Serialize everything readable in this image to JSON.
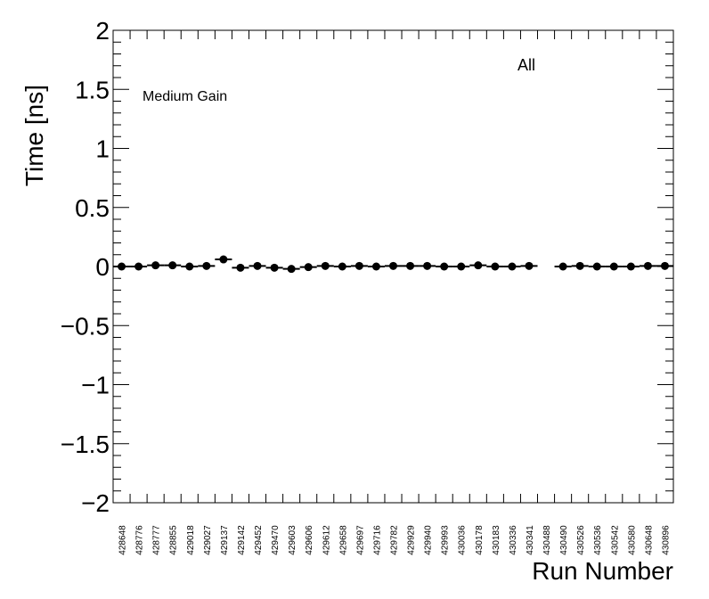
{
  "chart_data": {
    "type": "scatter",
    "ylabel": "Time [ns]",
    "xlabel": "Run Number",
    "annotations": [
      "Medium Gain",
      "All"
    ],
    "categories": [
      "428648",
      "428776",
      "428777",
      "428855",
      "429018",
      "429027",
      "429137",
      "429142",
      "429452",
      "429470",
      "429603",
      "429606",
      "429612",
      "429658",
      "429697",
      "429716",
      "429782",
      "429929",
      "429940",
      "429993",
      "430036",
      "430178",
      "430183",
      "430336",
      "430341",
      "430488",
      "430490",
      "430526",
      "430536",
      "430542",
      "430580",
      "430648",
      "430896"
    ],
    "values": [
      0,
      0,
      0.01,
      0.01,
      0,
      0.005,
      0.06,
      -0.01,
      0.005,
      -0.01,
      -0.02,
      -0.005,
      0.005,
      0,
      0.005,
      0,
      0.005,
      0.005,
      0.005,
      0,
      0,
      0.01,
      0,
      0,
      0.005,
      null,
      0,
      0.005,
      0,
      0,
      0,
      0.005,
      0.005
    ],
    "color": "#000000",
    "ylim": [
      -2,
      2
    ],
    "yticks": [
      {
        "value": -2,
        "label": "−2"
      },
      {
        "value": -1.5,
        "label": "−1.5"
      },
      {
        "value": -1,
        "label": "−1"
      },
      {
        "value": -0.5,
        "label": "−0.5"
      },
      0,
      0.5,
      1,
      1.5,
      2
    ],
    "yminor_ticks": [
      -1.9,
      -1.8,
      -1.7,
      -1.6,
      -1.4,
      -1.3,
      -1.2,
      -1.1,
      -0.9,
      -0.8,
      -0.7,
      -0.6,
      -0.4,
      -0.3,
      -0.2,
      -0.1,
      0.1,
      0.2,
      0.3,
      0.4,
      0.6,
      0.7,
      0.8,
      0.9,
      1.1,
      1.2,
      1.3,
      1.4,
      1.6,
      1.7,
      1.8,
      1.9
    ],
    "grid": false
  }
}
